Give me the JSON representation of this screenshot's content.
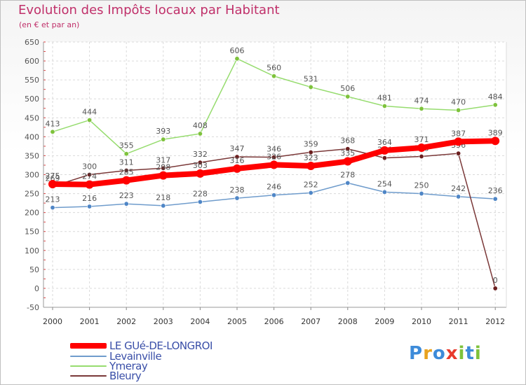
{
  "header": {
    "title": "Evolution des Impôts locaux par Habitant",
    "subtitle": "(en € et par an)"
  },
  "legend": [
    {
      "label": "LE GUé-DE-LONGROI",
      "color": "#ff0000"
    },
    {
      "label": "Levainville",
      "color": "#6f9ccc"
    },
    {
      "label": "Ymeray",
      "color": "#96dc6e"
    },
    {
      "label": "Bleury",
      "color": "#7a3838"
    }
  ],
  "logo": {
    "text": "Proxiti",
    "letters": [
      "P",
      "r",
      "o",
      "x",
      "i",
      "t",
      "i"
    ],
    "colors": [
      "#3d8bd9",
      "#e8a21e",
      "#3d8bd9",
      "#e83a2c",
      "#7ec23c",
      "#3d8bd9",
      "#7ec23c"
    ]
  },
  "chart_data": {
    "type": "line",
    "title": "Evolution des Impôts locaux par Habitant",
    "ylabel": "(en € et par an)",
    "xlabel": "",
    "x": [
      "2000",
      "2001",
      "2002",
      "2003",
      "2004",
      "2005",
      "2006",
      "2007",
      "2008",
      "2009",
      "2010",
      "2011",
      "2012"
    ],
    "ylim": [
      -50,
      650
    ],
    "yticks": [
      -50,
      0,
      50,
      100,
      150,
      200,
      250,
      300,
      350,
      400,
      450,
      500,
      550,
      600,
      650
    ],
    "grid": true,
    "legend_position": "bottom-left",
    "series": [
      {
        "name": "Ymeray",
        "color": "#96dc6e",
        "marker": "#7ec23c",
        "values": [
          413,
          444,
          355,
          393,
          408,
          606,
          560,
          531,
          506,
          481,
          474,
          470,
          484
        ]
      },
      {
        "name": "Levainville",
        "color": "#6f9ccc",
        "marker": "#4f86c6",
        "values": [
          213,
          216,
          223,
          218,
          228,
          238,
          246,
          252,
          278,
          254,
          250,
          242,
          236
        ]
      },
      {
        "name": "Bleury",
        "color": "#7a3838",
        "marker": "#6b1f1f",
        "values": [
          269,
          300,
          311,
          317,
          332,
          347,
          346,
          359,
          368,
          344,
          348,
          356,
          0
        ]
      },
      {
        "name": "LE GUé-DE-LONGROI",
        "color": "#ff0000",
        "marker": "#ff0000",
        "values": [
          275,
          274,
          285,
          298,
          303,
          316,
          326,
          323,
          335,
          364,
          371,
          387,
          389
        ]
      }
    ]
  }
}
